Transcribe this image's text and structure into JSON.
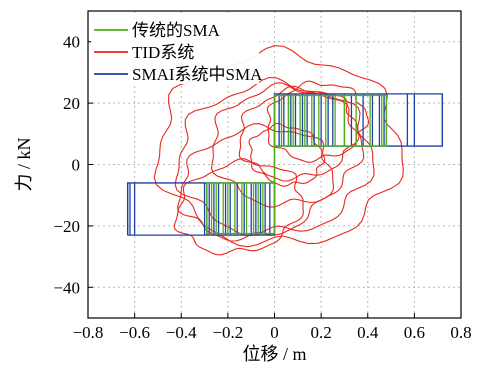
{
  "chart_data": {
    "type": "line",
    "xlabel": "位移 / m",
    "ylabel": "力 / kN",
    "xlim": [
      -0.8,
      0.8
    ],
    "ylim": [
      -50,
      50
    ],
    "xticks": [
      "−0.8",
      "−0.6",
      "−0.4",
      "−0.2",
      "0",
      "0.2",
      "0.4",
      "0.6",
      "0.8"
    ],
    "yticks": [
      "−40",
      "−20",
      "0",
      "20",
      "40"
    ],
    "xtick_values": [
      -0.8,
      -0.6,
      -0.4,
      -0.2,
      0,
      0.2,
      0.4,
      0.6,
      0.8
    ],
    "ytick_values": [
      -40,
      -20,
      0,
      20,
      40
    ],
    "grid": true,
    "legend_position": "top-left",
    "series": [
      {
        "name": "传统的SMA",
        "color": "#4caf1a",
        "kind": "flag-hysteresis",
        "segments": [
          {
            "x": [
              -0.29,
              0.0
            ],
            "y": [
              -22.5,
              -6.0
            ]
          },
          {
            "x": [
              0.0,
              0.48
            ],
            "y": [
              6.0,
              22.5
            ]
          }
        ],
        "transitions_x": [
          -0.29,
          -0.27,
          -0.25,
          -0.22,
          -0.2,
          -0.17,
          -0.14,
          -0.12,
          -0.09,
          -0.07,
          -0.05,
          0.03,
          0.06,
          0.08,
          0.11,
          0.13,
          0.16,
          0.19,
          0.22,
          0.26,
          0.3,
          0.35,
          0.41,
          0.46,
          0.48
        ]
      },
      {
        "name": "TID系统",
        "color": "#e8281e",
        "kind": "elliptical-hysteresis-loops",
        "loops": [
          {
            "cx": 0.02,
            "cy": 5,
            "rx": 0.52,
            "ry": 31,
            "tilt_deg": 28
          },
          {
            "cx": 0.0,
            "cy": 2,
            "rx": 0.42,
            "ry": 24,
            "tilt_deg": 30
          },
          {
            "cx": 0.05,
            "cy": 6,
            "rx": 0.32,
            "ry": 19,
            "tilt_deg": 33
          },
          {
            "cx": 0.1,
            "cy": 10,
            "rx": 0.26,
            "ry": 14,
            "tilt_deg": 36
          },
          {
            "cx": -0.08,
            "cy": -6,
            "rx": 0.34,
            "ry": 17,
            "tilt_deg": 32
          },
          {
            "cx": 0.18,
            "cy": 14,
            "rx": 0.22,
            "ry": 12,
            "tilt_deg": 40
          },
          {
            "cx": -0.15,
            "cy": -14,
            "rx": 0.28,
            "ry": 14,
            "tilt_deg": 30
          },
          {
            "cx": 0.05,
            "cy": 3,
            "rx": 0.15,
            "ry": 10,
            "tilt_deg": 38
          }
        ]
      },
      {
        "name": "SMAI系统中SMA",
        "color": "#1f3fa8",
        "kind": "flag-hysteresis",
        "segments": [
          {
            "x": [
              -0.63,
              0.0
            ],
            "y": [
              -23.0,
              -6.0
            ]
          },
          {
            "x": [
              0.0,
              0.72
            ],
            "y": [
              6.0,
              23.0
            ]
          }
        ],
        "transitions_x": [
          -0.63,
          -0.62,
          -0.6,
          -0.3,
          -0.29,
          -0.28,
          -0.26,
          -0.24,
          -0.21,
          -0.19,
          -0.16,
          -0.13,
          -0.1,
          -0.08,
          -0.06,
          -0.04,
          -0.02,
          0.02,
          0.04,
          0.06,
          0.07,
          0.09,
          0.12,
          0.14,
          0.17,
          0.2,
          0.23,
          0.25,
          0.3,
          0.33,
          0.38,
          0.42,
          0.45,
          0.47,
          0.57,
          0.6,
          0.72
        ]
      }
    ]
  }
}
